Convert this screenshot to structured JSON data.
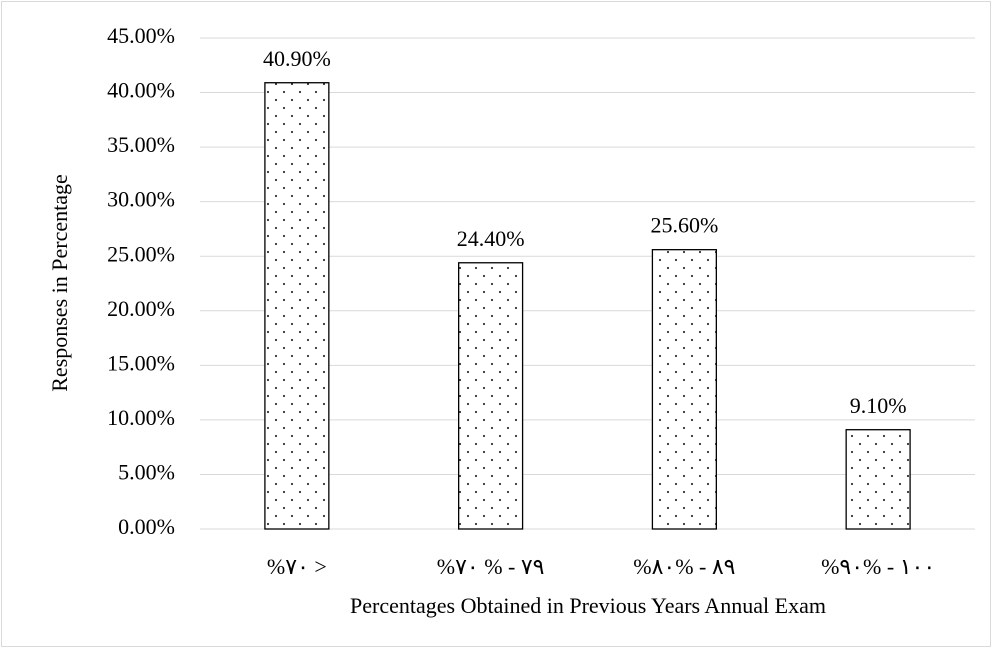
{
  "chart_data": {
    "type": "bar",
    "x_label": "Percentages Obtained in Previous Years Annual Exam",
    "y_label": "Responses in Percentage",
    "categories": [
      "%٧٠ >",
      "%٧٩ - % ٧٠",
      "%٨٩ - %٨٠",
      "%١٠٠ - %٩٠"
    ],
    "values": [
      40.9,
      24.4,
      25.6,
      9.1
    ],
    "value_labels": [
      "40.90%",
      "24.40%",
      "25.60%",
      "9.10%"
    ],
    "color": "#ffffff",
    "ylim": [
      0,
      45
    ],
    "yticks": [
      {
        "value": 0,
        "label": "0.00%"
      },
      {
        "value": 5,
        "label": "5.00%"
      },
      {
        "value": 10,
        "label": "10.00%"
      },
      {
        "value": 15,
        "label": "15.00%"
      },
      {
        "value": 20,
        "label": "20.00%"
      },
      {
        "value": 25,
        "label": "25.00%"
      },
      {
        "value": 30,
        "label": "30.00%"
      },
      {
        "value": 35,
        "label": "35.00%"
      },
      {
        "value": 40,
        "label": "40.00%"
      },
      {
        "value": 45,
        "label": "45.00%"
      }
    ],
    "grid": true
  }
}
